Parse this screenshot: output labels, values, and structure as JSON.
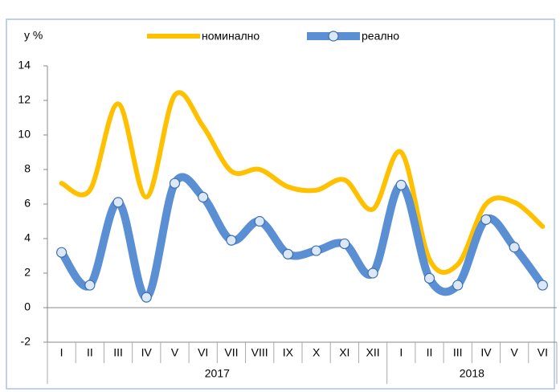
{
  "chart_data": {
    "type": "line",
    "y_label": "у %",
    "groups": [
      {
        "label": "2017",
        "categories": [
          "I",
          "II",
          "III",
          "IV",
          "V",
          "VI",
          "VII",
          "VIII",
          "IX",
          "X",
          "XI",
          "XII"
        ]
      },
      {
        "label": "2018",
        "categories": [
          "I",
          "II",
          "III",
          "IV",
          "V",
          "VI"
        ]
      }
    ],
    "series": [
      {
        "name": "номинално",
        "color": "#ffc000",
        "values": [
          7.2,
          6.8,
          11.8,
          6.4,
          12.3,
          10.5,
          7.9,
          8.0,
          7.0,
          6.8,
          7.4,
          5.7,
          9.0,
          2.8,
          2.5,
          6.0,
          6.1,
          4.7
        ]
      },
      {
        "name": "реално",
        "color": "#5b8fd4",
        "markers": true,
        "values": [
          3.2,
          1.3,
          6.1,
          0.6,
          7.2,
          6.4,
          3.9,
          5.0,
          3.1,
          3.3,
          3.7,
          2.0,
          7.1,
          1.7,
          1.3,
          5.1,
          3.5,
          1.3
        ]
      }
    ],
    "ylim": [
      -2,
      14
    ],
    "yticks": [
      -2,
      0,
      2,
      4,
      6,
      8,
      10,
      12,
      14
    ]
  }
}
